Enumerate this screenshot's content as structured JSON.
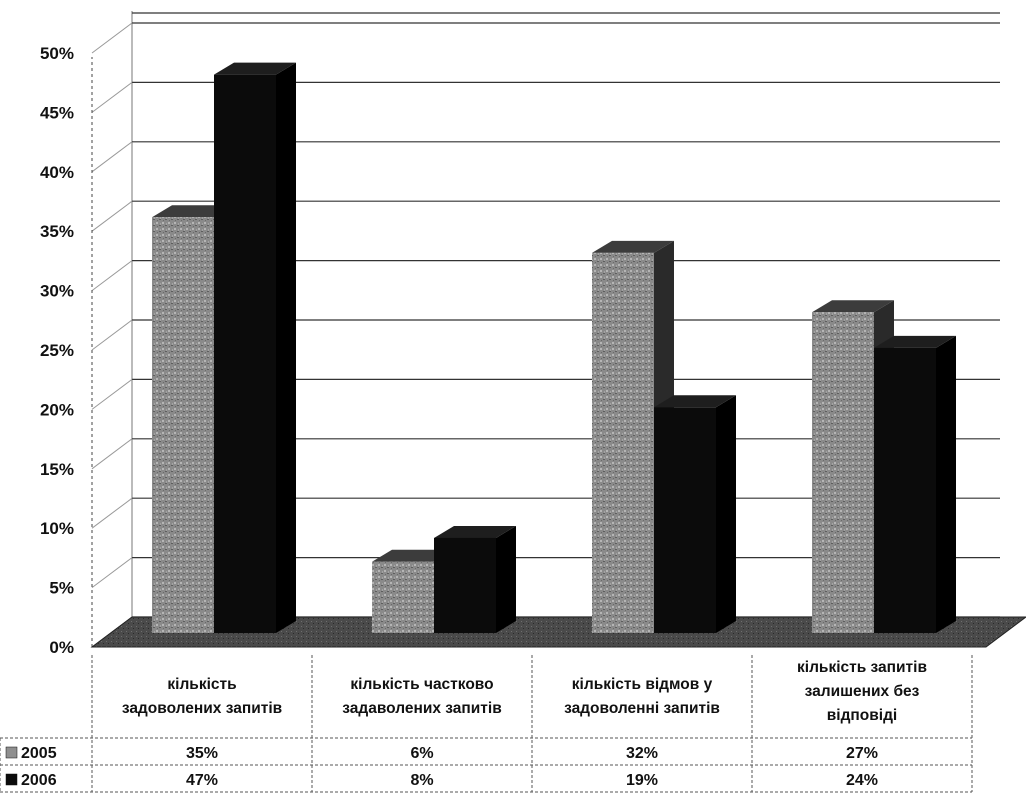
{
  "chart_data": {
    "type": "bar",
    "title": "",
    "xlabel": "",
    "ylabel": "",
    "ylim": [
      0,
      50
    ],
    "y_ticks": [
      "0%",
      "5%",
      "10%",
      "15%",
      "20%",
      "25%",
      "30%",
      "35%",
      "40%",
      "45%",
      "50%"
    ],
    "categories": [
      [
        "кількість",
        "задоволених запитів"
      ],
      [
        "кількість частково",
        "задаволених запитів"
      ],
      [
        "кількість відмов у",
        "задоволенні запитів"
      ],
      [
        "кількість запитів",
        "залишених без",
        "відповіді"
      ]
    ],
    "series": [
      {
        "name": "2005",
        "values": [
          35,
          6,
          32,
          27
        ],
        "labels": [
          "35%",
          "6%",
          "32%",
          "27%"
        ],
        "color": "#8f8f8f"
      },
      {
        "name": "2006",
        "values": [
          47,
          8,
          19,
          24
        ],
        "labels": [
          "47%",
          "8%",
          "19%",
          "24%"
        ],
        "color": "#0b0b0b"
      }
    ],
    "grid": true,
    "legend": "data-table",
    "style": "3d-column"
  }
}
